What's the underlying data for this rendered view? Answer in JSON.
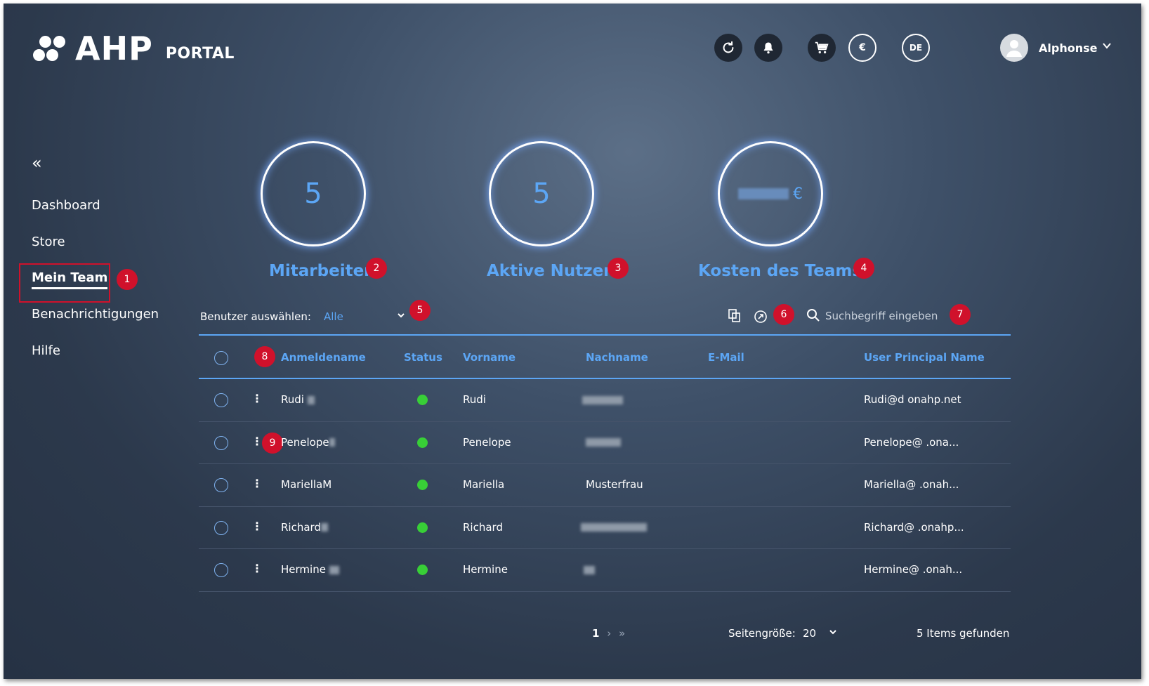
{
  "header": {
    "logo_brand": "AHP",
    "logo_portal": "PORTAL",
    "icons": [
      "refresh-icon",
      "bell-icon",
      "cart-icon",
      "euro-icon"
    ],
    "language": "DE",
    "user_name": "Alphonse"
  },
  "sidebar": {
    "items": [
      {
        "label": "Dashboard"
      },
      {
        "label": "Store"
      },
      {
        "label": "Mein Team",
        "active": true
      },
      {
        "label": "Benachrichtigungen"
      },
      {
        "label": "Hilfe"
      }
    ]
  },
  "kpis": [
    {
      "value": "5",
      "label": "Mitarbeiter"
    },
    {
      "value": "5",
      "label": "Aktive Nutzer"
    },
    {
      "value": "€",
      "label": "Kosten des Teams"
    }
  ],
  "filter": {
    "label": "Benutzer auswählen:",
    "value": "Alle",
    "search_placeholder": "Suchbegriff eingeben"
  },
  "table": {
    "columns": [
      "Anmeldename",
      "Status",
      "Vorname",
      "Nachname",
      "E-Mail",
      "User Principal Name"
    ],
    "rows": [
      {
        "login": "Rudi",
        "vorname": "Rudi",
        "nachname": "",
        "email": "",
        "upn": "Rudi@d onahp.net"
      },
      {
        "login": "Penelope",
        "vorname": "Penelope",
        "nachname": "",
        "email": "",
        "upn": "Penelope@ .ona..."
      },
      {
        "login": "MariellaM",
        "vorname": "Mariella",
        "nachname": "Musterfrau",
        "email": "",
        "upn": "Mariella@ .onah..."
      },
      {
        "login": "Richard",
        "vorname": "Richard",
        "nachname": "",
        "email": "",
        "upn": "Richard@ .onahp..."
      },
      {
        "login": "Hermine",
        "vorname": "Hermine",
        "nachname": "",
        "email": "",
        "upn": "Hermine@ .onah..."
      }
    ]
  },
  "pagination": {
    "current_page": "1",
    "next": "›",
    "last": "»",
    "page_size_label": "Seitengröße:",
    "page_size": "20",
    "items_found": "5 Items gefunden"
  },
  "badges": [
    "1",
    "2",
    "3",
    "4",
    "5",
    "6",
    "7",
    "8",
    "9"
  ],
  "colors": {
    "accent": "#5ca6f5",
    "badge_red": "#d0112b",
    "status_active": "#38cf37"
  }
}
